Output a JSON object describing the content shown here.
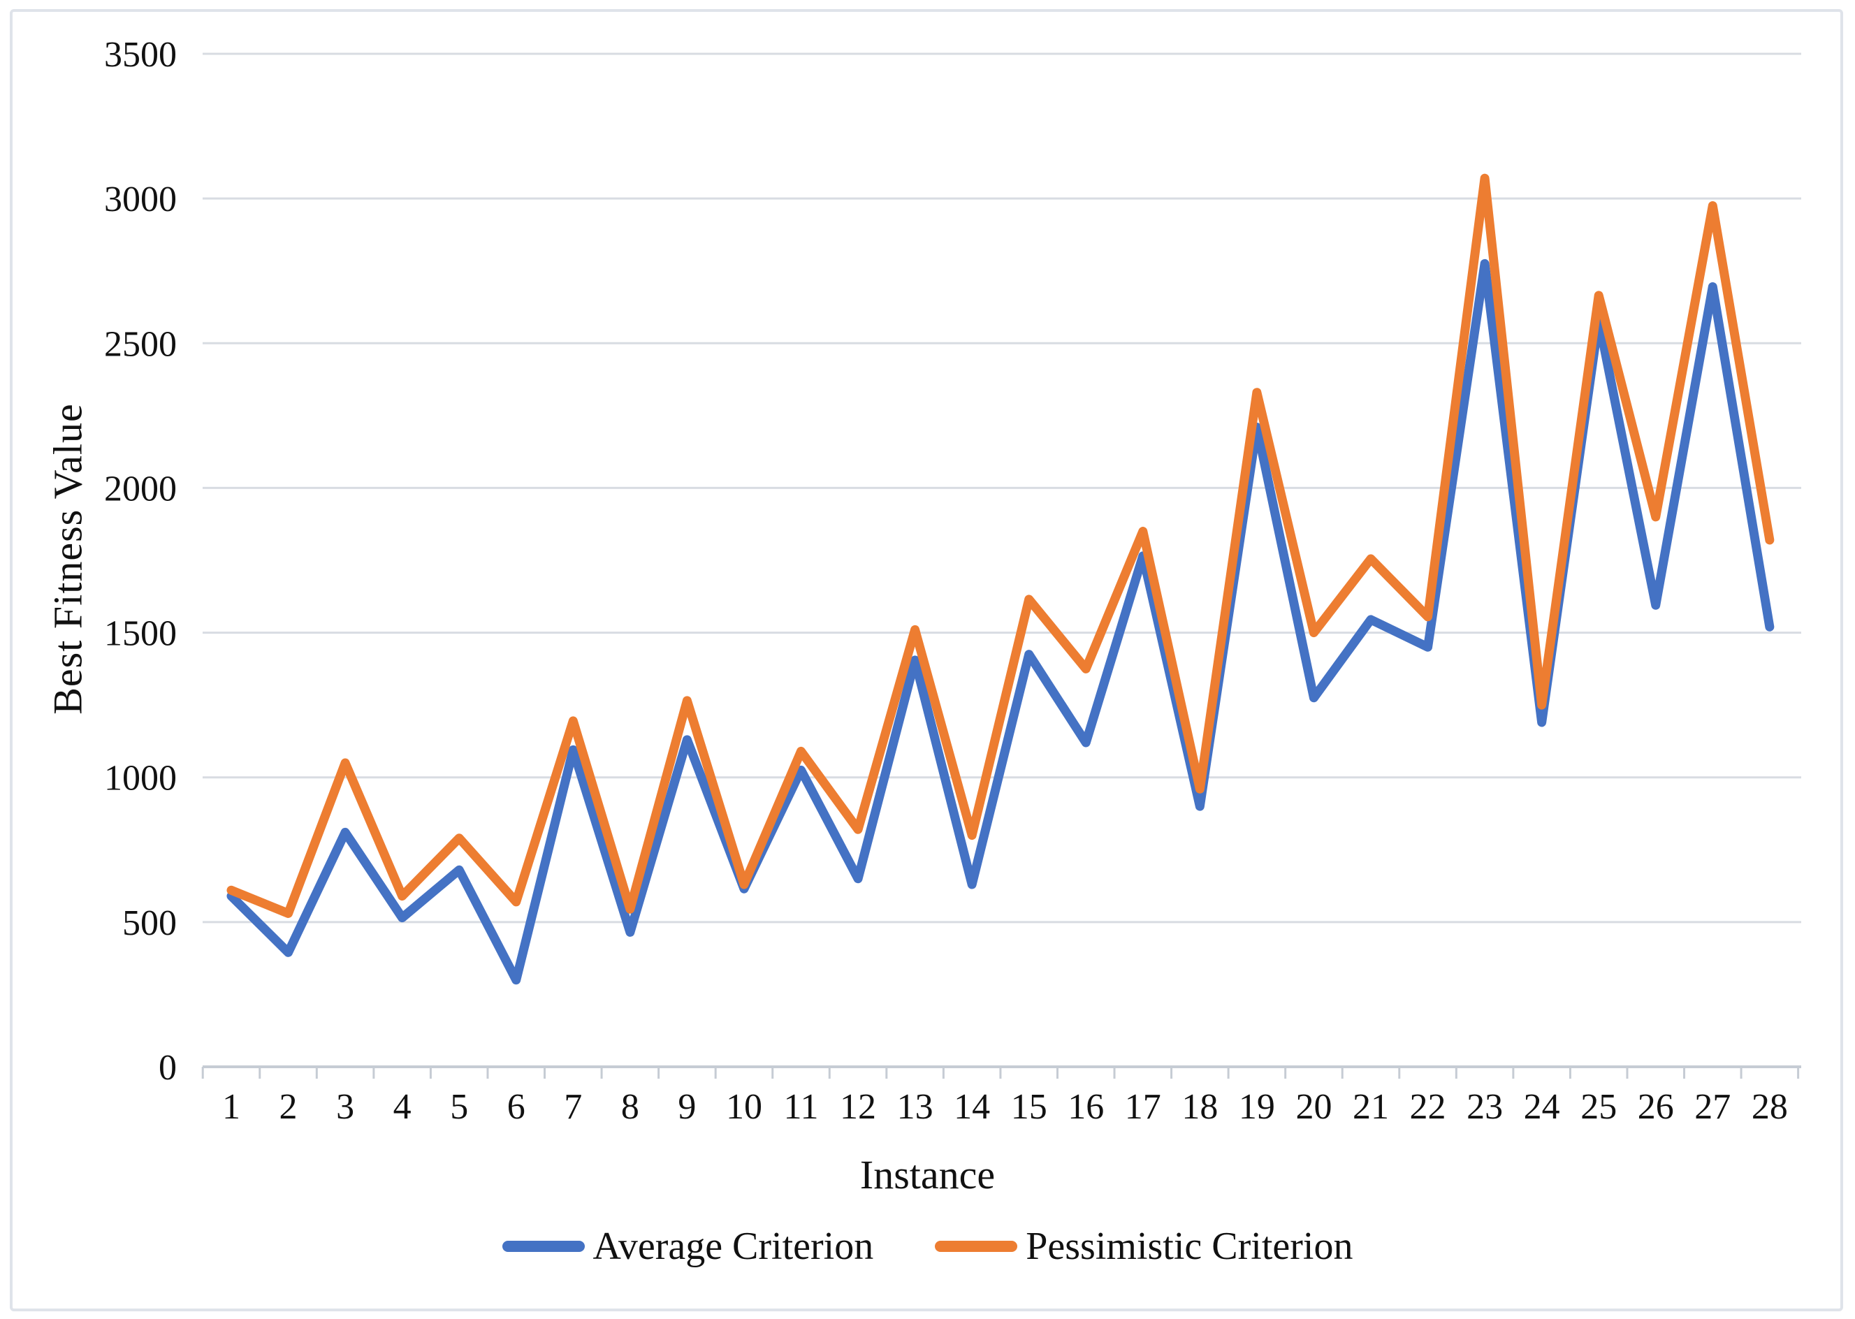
{
  "figure": {
    "ylabel": "Best Fitness Value",
    "xlabel": "Instance"
  },
  "legend": {
    "position": "bottom",
    "items": [
      {
        "label": "Average Criterion",
        "color": "#4472C4"
      },
      {
        "label": "Pessimistic Criterion",
        "color": "#ED7D31"
      }
    ]
  },
  "colors": {
    "average_series": "#4472C4",
    "pessimistic_series": "#ED7D31",
    "gridline": "#D8DCE2",
    "axis": "#C6CCD4",
    "frame_border": "#DFE3EA",
    "text": "#111111",
    "background": "#FFFFFF"
  },
  "chart_data": {
    "type": "line",
    "title": "",
    "xlabel": "Instance",
    "ylabel": "Best Fitness Value",
    "x": [
      1,
      2,
      3,
      4,
      5,
      6,
      7,
      8,
      9,
      10,
      11,
      12,
      13,
      14,
      15,
      16,
      17,
      18,
      19,
      20,
      21,
      22,
      23,
      24,
      25,
      26,
      27,
      28
    ],
    "series": [
      {
        "name": "Average Criterion",
        "color": "#4472C4",
        "values": [
          590,
          395,
          810,
          515,
          680,
          300,
          1095,
          465,
          1130,
          615,
          1025,
          650,
          1405,
          630,
          1425,
          1120,
          1765,
          900,
          2210,
          1275,
          1545,
          1450,
          2775,
          1190,
          2580,
          1595,
          2695,
          1520
        ]
      },
      {
        "name": "Pessimistic Criterion",
        "color": "#ED7D31",
        "values": [
          610,
          530,
          1050,
          590,
          790,
          570,
          1195,
          545,
          1265,
          630,
          1090,
          820,
          1510,
          800,
          1615,
          1375,
          1850,
          960,
          2330,
          1500,
          1755,
          1555,
          3070,
          1250,
          2665,
          1900,
          2975,
          1820
        ]
      }
    ],
    "ylim": [
      0,
      3500
    ],
    "yticks": [
      0,
      500,
      1000,
      1500,
      2000,
      2500,
      3000,
      3500
    ],
    "grid": true,
    "legend_position": "bottom"
  }
}
